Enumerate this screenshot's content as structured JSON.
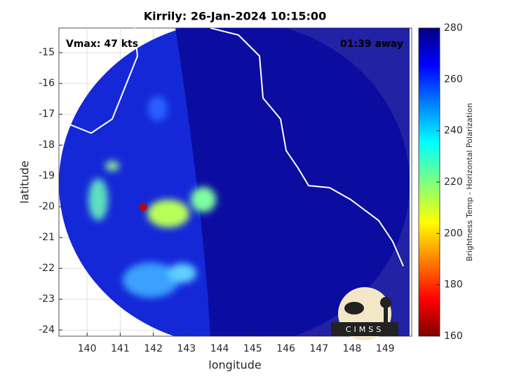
{
  "chart_data": {
    "type": "image",
    "title": "Kirrily: 26-Jan-2024 10:15:00",
    "annotations": [
      "Vmax: 47 kts",
      "01:39 away"
    ],
    "xlabel": "longitude",
    "ylabel": "latitude",
    "xlim": [
      139.15,
      149.8
    ],
    "ylim": [
      -24.2,
      -14.2
    ],
    "xticks": [
      140,
      141,
      142,
      143,
      144,
      145,
      146,
      147,
      148,
      149
    ],
    "yticks": [
      -15,
      -16,
      -17,
      -18,
      -19,
      -20,
      -21,
      -22,
      -23,
      -24
    ],
    "grid": true,
    "colorbar": {
      "label": "Brightness Temp - Horizontal Polarization",
      "lim": [
        160,
        280
      ],
      "ticks": [
        160,
        180,
        200,
        220,
        240,
        260,
        280
      ]
    },
    "logo": "CIMSS"
  }
}
